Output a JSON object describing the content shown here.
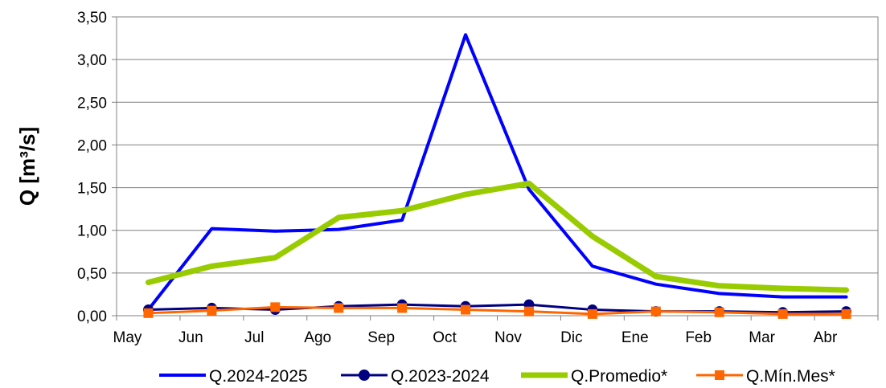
{
  "chart_data": {
    "type": "line",
    "title": "",
    "xlabel": "",
    "ylabel": "Q [m³/s]",
    "ylim": [
      0,
      3.5
    ],
    "yticks": [
      "0,00",
      "0,50",
      "1,00",
      "1,50",
      "2,00",
      "2,50",
      "3,00",
      "3,50"
    ],
    "ytick_values": [
      0,
      0.5,
      1,
      1.5,
      2,
      2.5,
      3,
      3.5
    ],
    "categories": [
      "May",
      "Jun",
      "Jul",
      "Ago",
      "Sep",
      "Oct",
      "Nov",
      "Dic",
      "Ene",
      "Feb",
      "Mar",
      "Abr"
    ],
    "grid": true,
    "legend_position": "bottom",
    "series": [
      {
        "name": "Q.2024-2025",
        "color": "#0000FF",
        "marker": "none",
        "values": [
          0.07,
          1.02,
          0.99,
          1.01,
          1.12,
          3.29,
          1.48,
          0.58,
          0.37,
          0.26,
          0.22,
          0.22
        ]
      },
      {
        "name": "Q.2023-2024",
        "color": "#000080",
        "marker": "circle",
        "values": [
          0.07,
          0.09,
          0.07,
          0.11,
          0.13,
          0.11,
          0.13,
          0.07,
          0.05,
          0.05,
          0.04,
          0.05
        ]
      },
      {
        "name": "Q.Promedio*",
        "color": "#99CC00",
        "marker": "none",
        "values": [
          0.39,
          0.58,
          0.68,
          1.15,
          1.23,
          1.42,
          1.55,
          0.93,
          0.46,
          0.35,
          0.32,
          0.3
        ]
      },
      {
        "name": "Q.Mín.Mes*",
        "color": "#FF6600",
        "marker": "square",
        "values": [
          0.03,
          0.06,
          0.1,
          0.09,
          0.09,
          0.07,
          0.05,
          0.02,
          0.05,
          0.04,
          0.02,
          0.02
        ]
      }
    ]
  }
}
